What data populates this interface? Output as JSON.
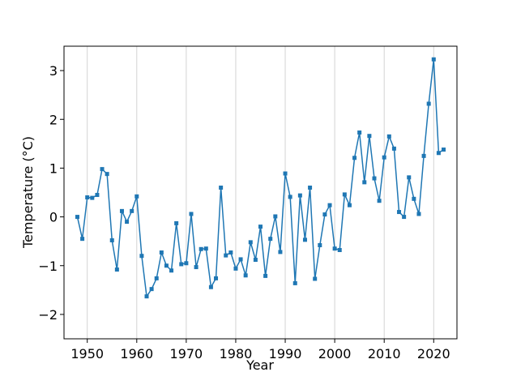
{
  "chart_data": {
    "type": "line",
    "title": "",
    "xlabel": "Year",
    "ylabel": "Temperature (°C)",
    "xlim": [
      1945.3,
      2024.7
    ],
    "ylim": [
      -2.5,
      3.5
    ],
    "grid": "vertical lines at x ticks",
    "legend": "none",
    "x_ticks": [
      {
        "value": 1950,
        "label": "1950"
      },
      {
        "value": 1960,
        "label": "1960"
      },
      {
        "value": 1970,
        "label": "1970"
      },
      {
        "value": 1980,
        "label": "1980"
      },
      {
        "value": 1990,
        "label": "1990"
      },
      {
        "value": 2000,
        "label": "2000"
      },
      {
        "value": 2010,
        "label": "2010"
      },
      {
        "value": 2020,
        "label": "2020"
      }
    ],
    "y_ticks": [
      {
        "value": -2,
        "label": "−2"
      },
      {
        "value": -1,
        "label": "−1"
      },
      {
        "value": 0,
        "label": "0"
      },
      {
        "value": 1,
        "label": "1"
      },
      {
        "value": 2,
        "label": "2"
      },
      {
        "value": 3,
        "label": "3"
      }
    ],
    "line_color": "#1f77b4",
    "grid_color": "#d3d3d3",
    "marker": "square",
    "series": [
      {
        "x": [
          1948,
          1949,
          1950,
          1951,
          1952,
          1953,
          1954,
          1955,
          1956,
          1957,
          1958,
          1959,
          1960,
          1961,
          1962,
          1963,
          1964,
          1965,
          1966,
          1967,
          1968,
          1969,
          1970,
          1971,
          1972,
          1973,
          1974,
          1975,
          1976,
          1977,
          1978,
          1979,
          1980,
          1981,
          1982,
          1983,
          1984,
          1985,
          1986,
          1987,
          1988,
          1989,
          1990,
          1991,
          1992,
          1993,
          1994,
          1995,
          1996,
          1997,
          1998,
          1999,
          2000,
          2001,
          2002,
          2003,
          2004,
          2005,
          2006,
          2007,
          2008,
          2009,
          2010,
          2011,
          2012,
          2013,
          2014,
          2015,
          2016,
          2017,
          2018,
          2019,
          2020,
          2021,
          2022
        ],
        "values": [
          0.0,
          -0.45,
          0.4,
          0.39,
          0.45,
          0.98,
          0.88,
          -0.48,
          -1.08,
          0.12,
          -0.1,
          0.12,
          0.42,
          -0.8,
          -1.63,
          -1.48,
          -1.26,
          -0.73,
          -1.0,
          -1.1,
          -0.13,
          -0.97,
          -0.95,
          0.06,
          -1.03,
          -0.66,
          -0.65,
          -1.44,
          -1.26,
          0.6,
          -0.79,
          -0.73,
          -1.06,
          -0.87,
          -1.2,
          -0.52,
          -0.88,
          -0.2,
          -1.21,
          -0.45,
          0.01,
          -0.72,
          0.89,
          0.41,
          -1.36,
          0.44,
          -0.47,
          0.6,
          -1.27,
          -0.58,
          0.05,
          0.24,
          -0.65,
          -0.68,
          0.46,
          0.24,
          1.21,
          1.73,
          0.71,
          1.66,
          0.79,
          0.33,
          1.22,
          1.65,
          1.4,
          0.1,
          0.0,
          0.81,
          0.37,
          0.06,
          1.25,
          2.32,
          3.23,
          1.31,
          1.38
        ]
      }
    ]
  }
}
